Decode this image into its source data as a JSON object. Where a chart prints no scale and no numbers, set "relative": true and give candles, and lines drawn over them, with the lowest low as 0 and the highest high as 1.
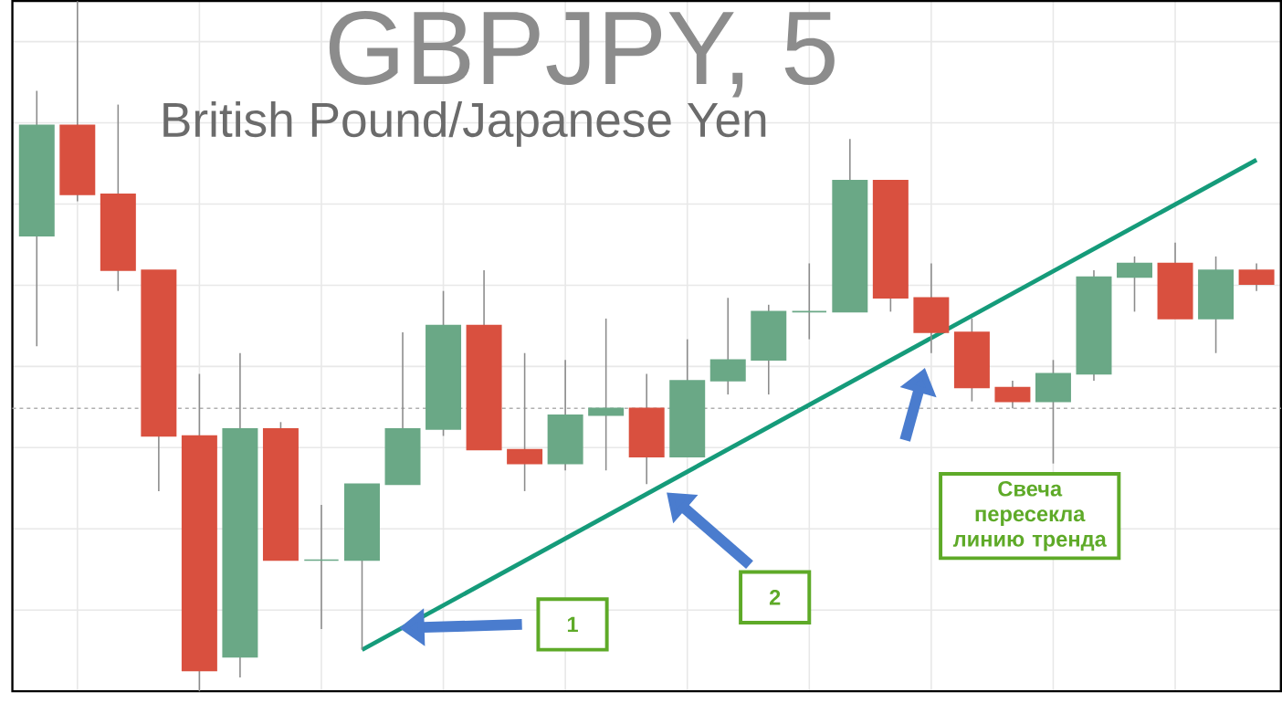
{
  "chart_data": {
    "type": "candlestick",
    "title": "GBPJPY, 5",
    "subtitle": "British Pound/Japanese Yen",
    "categories": [
      null,
      null,
      null,
      null,
      null,
      null,
      null,
      null,
      null,
      null,
      null,
      null,
      null,
      null,
      null,
      null,
      null,
      null,
      null,
      null,
      null,
      null,
      null,
      null,
      null,
      null,
      null,
      null,
      null,
      null,
      null
    ],
    "ohlc": [
      [
        0.66,
        0.87,
        0.5,
        0.82
      ],
      [
        0.82,
        1.0,
        0.71,
        0.72
      ],
      [
        0.72,
        0.85,
        0.58,
        0.61
      ],
      [
        0.61,
        0.61,
        0.29,
        0.37
      ],
      [
        0.37,
        0.46,
        0.0,
        0.03
      ],
      [
        0.05,
        0.49,
        0.02,
        0.38
      ],
      [
        0.38,
        0.39,
        0.19,
        0.19
      ],
      [
        0.19,
        0.27,
        0.09,
        0.19
      ],
      [
        0.19,
        0.3,
        0.06,
        0.3
      ],
      [
        0.3,
        0.52,
        0.3,
        0.38
      ],
      [
        0.38,
        0.58,
        0.37,
        0.53
      ],
      [
        0.53,
        0.61,
        0.35,
        0.35
      ],
      [
        0.35,
        0.49,
        0.29,
        0.33
      ],
      [
        0.33,
        0.48,
        0.32,
        0.4
      ],
      [
        0.4,
        0.54,
        0.32,
        0.41
      ],
      [
        0.41,
        0.46,
        0.3,
        0.34
      ],
      [
        0.34,
        0.51,
        0.34,
        0.45
      ],
      [
        0.45,
        0.57,
        0.43,
        0.48
      ],
      [
        0.48,
        0.56,
        0.43,
        0.55
      ],
      [
        0.55,
        0.62,
        0.51,
        0.55
      ],
      [
        0.55,
        0.8,
        0.55,
        0.74
      ],
      [
        0.74,
        0.74,
        0.55,
        0.57
      ],
      [
        0.57,
        0.62,
        0.49,
        0.52
      ],
      [
        0.52,
        0.54,
        0.42,
        0.44
      ],
      [
        0.44,
        0.45,
        0.41,
        0.42
      ],
      [
        0.42,
        0.48,
        0.33,
        0.46
      ],
      [
        0.46,
        0.61,
        0.45,
        0.6
      ],
      [
        0.6,
        0.63,
        0.55,
        0.62
      ],
      [
        0.62,
        0.65,
        0.54,
        0.54
      ],
      [
        0.54,
        0.63,
        0.49,
        0.61
      ],
      [
        0.61,
        0.62,
        0.58,
        0.59
      ]
    ],
    "colors": [
      "#6aa886",
      "#d9503f",
      "#d9503f",
      "#d9503f",
      "#d9503f",
      "#6aa886",
      "#d9503f",
      "#6aa886",
      "#6aa886",
      "#6aa886",
      "#6aa886",
      "#d9503f",
      "#d9503f",
      "#6aa886",
      "#6aa886",
      "#d9503f",
      "#6aa886",
      "#6aa886",
      "#6aa886",
      "#6aa886",
      "#6aa886",
      "#d9503f",
      "#d9503f",
      "#d9503f",
      "#d9503f",
      "#6aa886",
      "#6aa886",
      "#6aa886",
      "#d9503f",
      "#6aa886",
      "#d9503f"
    ],
    "series": [
      {
        "type": "line",
        "values": [
          null,
          null,
          null,
          null,
          null,
          null,
          null,
          null,
          0.06,
          null,
          null,
          null,
          null,
          null,
          null,
          null,
          null,
          null,
          null,
          null,
          null,
          null,
          null,
          null,
          null,
          null,
          null,
          null,
          null,
          null,
          0.77
        ],
        "color": "#159b7a"
      }
    ],
    "ref_lines": [
      {
        "axis": "y",
        "value": 0.41,
        "line_style": "dotted",
        "color": "#b0b0b0"
      }
    ],
    "relative": true,
    "grid": true,
    "tick_labels": false,
    "annotations": [
      "1",
      "2",
      "Свеча пересекла линию тренда"
    ]
  }
}
